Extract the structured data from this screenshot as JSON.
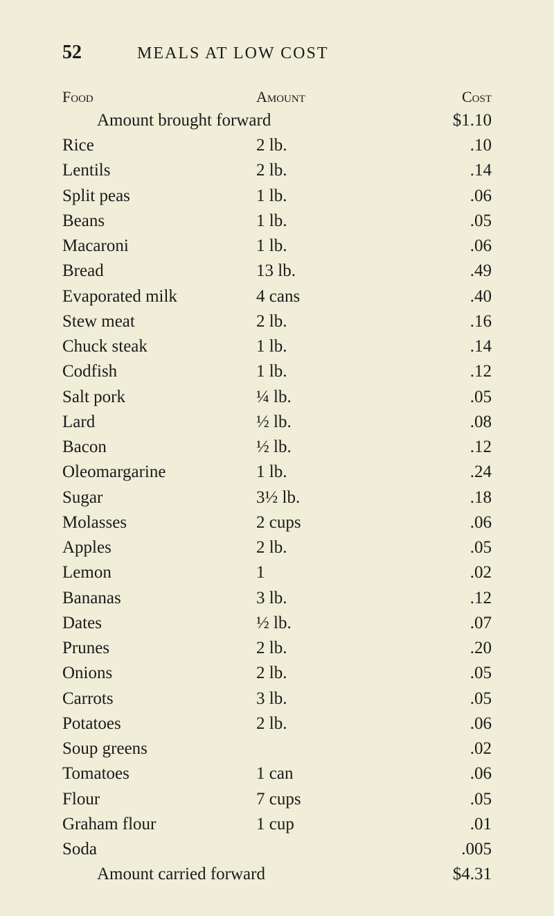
{
  "page": {
    "number": "52",
    "title": "MEALS AT LOW COST"
  },
  "headers": {
    "food": "Food",
    "amount": "Amount",
    "cost": "Cost"
  },
  "brought_forward": {
    "label": "Amount brought forward",
    "cost": "$1.10"
  },
  "items": [
    {
      "food": "Rice",
      "amount": "2 lb.",
      "cost": ".10"
    },
    {
      "food": "Lentils",
      "amount": "2 lb.",
      "cost": ".14"
    },
    {
      "food": "Split peas",
      "amount": "1 lb.",
      "cost": ".06"
    },
    {
      "food": "Beans",
      "amount": "1 lb.",
      "cost": ".05"
    },
    {
      "food": "Macaroni",
      "amount": "1 lb.",
      "cost": ".06"
    },
    {
      "food": "Bread",
      "amount": "13 lb.",
      "cost": ".49"
    },
    {
      "food": "Evaporated milk",
      "amount": "4 cans",
      "cost": ".40"
    },
    {
      "food": "Stew meat",
      "amount": "2 lb.",
      "cost": ".16"
    },
    {
      "food": "Chuck steak",
      "amount": "1 lb.",
      "cost": ".14"
    },
    {
      "food": "Codfish",
      "amount": "1 lb.",
      "cost": ".12"
    },
    {
      "food": "Salt pork",
      "amount": "¼ lb.",
      "cost": ".05"
    },
    {
      "food": "Lard",
      "amount": "½ lb.",
      "cost": ".08"
    },
    {
      "food": "Bacon",
      "amount": "½ lb.",
      "cost": ".12"
    },
    {
      "food": "Oleomargarine",
      "amount": "1 lb.",
      "cost": ".24"
    },
    {
      "food": "Sugar",
      "amount": "3½ lb.",
      "cost": ".18"
    },
    {
      "food": "Molasses",
      "amount": "2 cups",
      "cost": ".06"
    },
    {
      "food": "Apples",
      "amount": "2 lb.",
      "cost": ".05"
    },
    {
      "food": "Lemon",
      "amount": "1",
      "cost": ".02"
    },
    {
      "food": "Bananas",
      "amount": "3 lb.",
      "cost": ".12"
    },
    {
      "food": "Dates",
      "amount": "½ lb.",
      "cost": ".07"
    },
    {
      "food": "Prunes",
      "amount": "2 lb.",
      "cost": ".20"
    },
    {
      "food": "Onions",
      "amount": "2 lb.",
      "cost": ".05"
    },
    {
      "food": "Carrots",
      "amount": "3 lb.",
      "cost": ".05"
    },
    {
      "food": "Potatoes",
      "amount": "2 lb.",
      "cost": ".06"
    },
    {
      "food": "Soup greens",
      "amount": "",
      "cost": ".02"
    },
    {
      "food": "Tomatoes",
      "amount": "1 can",
      "cost": ".06"
    },
    {
      "food": "Flour",
      "amount": "7 cups",
      "cost": ".05"
    },
    {
      "food": "Graham flour",
      "amount": "1 cup",
      "cost": ".01"
    },
    {
      "food": "Soda",
      "amount": "",
      "cost": ".005"
    }
  ],
  "carried_forward": {
    "label": "Amount carried forward",
    "cost": "$4.31"
  },
  "style": {
    "background_color": "#f0eed8",
    "text_color": "#1a1a1a",
    "body_font_size": 25,
    "header_font_size": 22,
    "title_font_size": 24,
    "page_num_font_size": 28
  }
}
